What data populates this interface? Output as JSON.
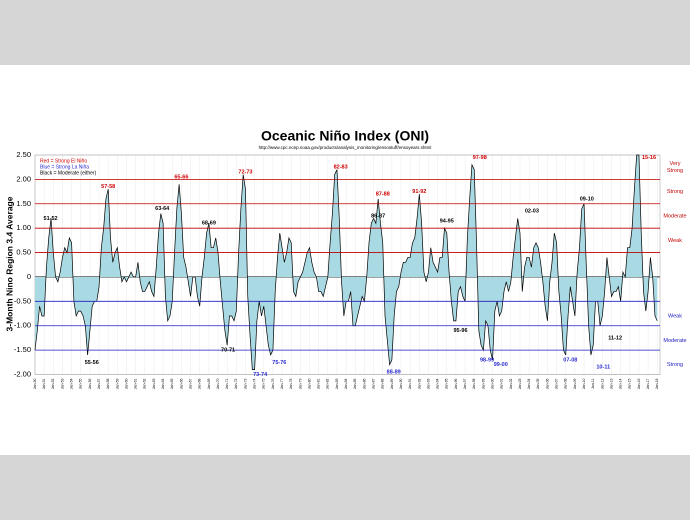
{
  "chart_data": {
    "type": "area",
    "title": "Oceanic Niño Index (ONI)",
    "subtitle": "http://www.cpc.ncep.noaa.gov/products/analysis_monitoring/ensostuff/ensoyears.shtml",
    "y_label": "3-Month Nino Region 3.4 Average",
    "legend_notes": [
      {
        "text": "Red = Strong El Niño",
        "color": "#d00000"
      },
      {
        "text": "Blue = Strong La Niña",
        "color": "#2a2ad0"
      },
      {
        "text": "Black = Moderate (either)",
        "color": "#000000"
      }
    ],
    "line_color": "#000000",
    "fill_color": "#a9d9e2",
    "ylim": [
      -2.0,
      2.5
    ],
    "yticks": [
      {
        "value": 2.5,
        "label": "2.50"
      },
      {
        "value": 2.0,
        "label": "2.00"
      },
      {
        "value": 1.5,
        "label": "1.50"
      },
      {
        "value": 1.0,
        "label": "1.00"
      },
      {
        "value": 0.5,
        "label": "0.50"
      },
      0,
      {
        "value": -0.5,
        "label": "-0.50"
      },
      {
        "value": -1.0,
        "label": "-1.00"
      },
      {
        "value": -1.5,
        "label": "-1.50"
      },
      {
        "value": -2.0,
        "label": "-2.00"
      }
    ],
    "xlim": [
      1950,
      2018.3
    ],
    "xticks": [
      {
        "value": 1950,
        "label": "Jan-50"
      },
      {
        "value": 1951,
        "label": "Jan-51"
      },
      {
        "value": 1952,
        "label": "Jan-52"
      },
      {
        "value": 1953,
        "label": "Jan-53"
      },
      {
        "value": 1954,
        "label": "Jan-54"
      },
      {
        "value": 1955,
        "label": "Jan-55"
      },
      {
        "value": 1956,
        "label": "Jan-56"
      },
      {
        "value": 1957,
        "label": "Jan-57"
      },
      {
        "value": 1958,
        "label": "Jan-58"
      },
      {
        "value": 1959,
        "label": "Jan-59"
      },
      {
        "value": 1960,
        "label": "Jan-60"
      },
      {
        "value": 1961,
        "label": "Jan-61"
      },
      {
        "value": 1962,
        "label": "Jan-62"
      },
      {
        "value": 1963,
        "label": "Jan-63"
      },
      {
        "value": 1964,
        "label": "Jan-64"
      },
      {
        "value": 1965,
        "label": "Jan-65"
      },
      {
        "value": 1966,
        "label": "Jan-66"
      },
      {
        "value": 1967,
        "label": "Jan-67"
      },
      {
        "value": 1968,
        "label": "Jan-68"
      },
      {
        "value": 1969,
        "label": "Jan-69"
      },
      {
        "value": 1970,
        "label": "Jan-70"
      },
      {
        "value": 1971,
        "label": "Jan-71"
      },
      {
        "value": 1972,
        "label": "Jan-72"
      },
      {
        "value": 1973,
        "label": "Jan-73"
      },
      {
        "value": 1974,
        "label": "Jan-74"
      },
      {
        "value": 1975,
        "label": "Jan-75"
      },
      {
        "value": 1976,
        "label": "Jan-76"
      },
      {
        "value": 1977,
        "label": "Jan-77"
      },
      {
        "value": 1978,
        "label": "Jan-78"
      },
      {
        "value": 1979,
        "label": "Jan-79"
      },
      {
        "value": 1980,
        "label": "Jan-80"
      },
      {
        "value": 1981,
        "label": "Jan-81"
      },
      {
        "value": 1982,
        "label": "Jan-82"
      },
      {
        "value": 1983,
        "label": "Jan-83"
      },
      {
        "value": 1984,
        "label": "Jan-84"
      },
      {
        "value": 1985,
        "label": "Jan-85"
      },
      {
        "value": 1986,
        "label": "Jan-86"
      },
      {
        "value": 1987,
        "label": "Jan-87"
      },
      {
        "value": 1988,
        "label": "Jan-88"
      },
      {
        "value": 1989,
        "label": "Jan-89"
      },
      {
        "value": 1990,
        "label": "Jan-90"
      },
      {
        "value": 1991,
        "label": "Jan-91"
      },
      {
        "value": 1992,
        "label": "Jan-92"
      },
      {
        "value": 1993,
        "label": "Jan-93"
      },
      {
        "value": 1994,
        "label": "Jan-94"
      },
      {
        "value": 1995,
        "label": "Jan-95"
      },
      {
        "value": 1996,
        "label": "Jan-96"
      },
      {
        "value": 1997,
        "label": "Jan-97"
      },
      {
        "value": 1998,
        "label": "Jan-98"
      },
      {
        "value": 1999,
        "label": "Jan-99"
      },
      {
        "value": 2000,
        "label": "Jan-00"
      },
      {
        "value": 2001,
        "label": "Jan-01"
      },
      {
        "value": 2002,
        "label": "Jan-02"
      },
      {
        "value": 2003,
        "label": "Jan-03"
      },
      {
        "value": 2004,
        "label": "Jan-04"
      },
      {
        "value": 2005,
        "label": "Jan-05"
      },
      {
        "value": 2006,
        "label": "Jan-06"
      },
      {
        "value": 2007,
        "label": "Jan-07"
      },
      {
        "value": 2008,
        "label": "Jan-08"
      },
      {
        "value": 2009,
        "label": "Jan-09"
      },
      {
        "value": 2010,
        "label": "Jan-10"
      },
      {
        "value": 2011,
        "label": "Jan-11"
      },
      {
        "value": 2012,
        "label": "Jan-12"
      },
      {
        "value": 2013,
        "label": "Jan-13"
      },
      {
        "value": 2014,
        "label": "Jan-14"
      },
      {
        "value": 2015,
        "label": "Jan-15"
      },
      {
        "value": 2016,
        "label": "Jan-16"
      },
      {
        "value": 2017,
        "label": "Jan-17"
      },
      {
        "value": 2018,
        "label": "Jan-18"
      }
    ],
    "x": [
      1950,
      1950.25,
      1950.5,
      1950.75,
      1951,
      1951.25,
      1951.5,
      1951.75,
      1952,
      1952.25,
      1952.5,
      1952.75,
      1953,
      1953.25,
      1953.5,
      1953.75,
      1954,
      1954.25,
      1954.5,
      1954.75,
      1955,
      1955.25,
      1955.5,
      1955.75,
      1956,
      1956.25,
      1956.5,
      1956.75,
      1957,
      1957.25,
      1957.5,
      1957.75,
      1958,
      1958.25,
      1958.5,
      1958.75,
      1959,
      1959.25,
      1959.5,
      1959.75,
      1960,
      1960.25,
      1960.5,
      1960.75,
      1961,
      1961.25,
      1961.5,
      1961.75,
      1962,
      1962.25,
      1962.5,
      1962.75,
      1963,
      1963.25,
      1963.5,
      1963.75,
      1964,
      1964.25,
      1964.5,
      1964.75,
      1965,
      1965.25,
      1965.5,
      1965.75,
      1966,
      1966.25,
      1966.5,
      1966.75,
      1967,
      1967.25,
      1967.5,
      1967.75,
      1968,
      1968.25,
      1968.5,
      1968.75,
      1969,
      1969.25,
      1969.5,
      1969.75,
      1970,
      1970.25,
      1970.5,
      1970.75,
      1971,
      1971.25,
      1971.5,
      1971.75,
      1972,
      1972.25,
      1972.5,
      1972.75,
      1973,
      1973.25,
      1973.5,
      1973.75,
      1974,
      1974.25,
      1974.5,
      1974.75,
      1975,
      1975.25,
      1975.5,
      1975.75,
      1976,
      1976.25,
      1976.5,
      1976.75,
      1977,
      1977.25,
      1977.5,
      1977.75,
      1978,
      1978.25,
      1978.5,
      1978.75,
      1979,
      1979.25,
      1979.5,
      1979.75,
      1980,
      1980.25,
      1980.5,
      1980.75,
      1981,
      1981.25,
      1981.5,
      1981.75,
      1982,
      1982.25,
      1982.5,
      1982.75,
      1983,
      1983.25,
      1983.5,
      1983.75,
      1984,
      1984.25,
      1984.5,
      1984.75,
      1985,
      1985.25,
      1985.5,
      1985.75,
      1986,
      1986.25,
      1986.5,
      1986.75,
      1987,
      1987.25,
      1987.5,
      1987.75,
      1988,
      1988.25,
      1988.5,
      1988.75,
      1989,
      1989.25,
      1989.5,
      1989.75,
      1990,
      1990.25,
      1990.5,
      1990.75,
      1991,
      1991.25,
      1991.5,
      1991.75,
      1992,
      1992.25,
      1992.5,
      1992.75,
      1993,
      1993.25,
      1993.5,
      1993.75,
      1994,
      1994.25,
      1994.5,
      1994.75,
      1995,
      1995.25,
      1995.5,
      1995.75,
      1996,
      1996.25,
      1996.5,
      1996.75,
      1997,
      1997.25,
      1997.5,
      1997.75,
      1998,
      1998.25,
      1998.5,
      1998.75,
      1999,
      1999.25,
      1999.5,
      1999.75,
      2000,
      2000.25,
      2000.5,
      2000.75,
      2001,
      2001.25,
      2001.5,
      2001.75,
      2002,
      2002.25,
      2002.5,
      2002.75,
      2003,
      2003.25,
      2003.5,
      2003.75,
      2004,
      2004.25,
      2004.5,
      2004.75,
      2005,
      2005.25,
      2005.5,
      2005.75,
      2006,
      2006.25,
      2006.5,
      2006.75,
      2007,
      2007.25,
      2007.5,
      2007.75,
      2008,
      2008.25,
      2008.5,
      2008.75,
      2009,
      2009.25,
      2009.5,
      2009.75,
      2010,
      2010.25,
      2010.5,
      2010.75,
      2011,
      2011.25,
      2011.5,
      2011.75,
      2012,
      2012.25,
      2012.5,
      2012.75,
      2013,
      2013.25,
      2013.5,
      2013.75,
      2014,
      2014.25,
      2014.5,
      2014.75,
      2015,
      2015.25,
      2015.5,
      2015.75,
      2016,
      2016.25,
      2016.5,
      2016.75,
      2017,
      2017.25,
      2017.5,
      2017.75,
      2018
    ],
    "values": [
      -1.5,
      -1.1,
      -0.6,
      -0.8,
      -0.8,
      0.2,
      0.8,
      1.2,
      0.5,
      0.0,
      -0.1,
      0.1,
      0.4,
      0.6,
      0.5,
      0.8,
      0.7,
      -0.5,
      -0.8,
      -0.7,
      -0.7,
      -0.8,
      -1.0,
      -1.6,
      -1.1,
      -0.6,
      -0.5,
      -0.5,
      -0.2,
      0.6,
      1.0,
      1.6,
      1.8,
      0.8,
      0.3,
      0.5,
      0.6,
      0.2,
      -0.1,
      0.0,
      -0.1,
      0.0,
      0.1,
      0.0,
      0.0,
      0.3,
      -0.1,
      -0.3,
      -0.3,
      -0.2,
      -0.1,
      -0.3,
      -0.4,
      0.2,
      0.9,
      1.3,
      1.1,
      -0.4,
      -0.9,
      -0.8,
      -0.5,
      0.5,
      1.4,
      1.9,
      1.3,
      0.4,
      0.2,
      -0.1,
      -0.4,
      0.0,
      0.0,
      -0.4,
      -0.6,
      0.0,
      0.4,
      0.9,
      1.1,
      0.6,
      0.6,
      0.8,
      0.5,
      -0.1,
      -0.6,
      -1.1,
      -1.4,
      -0.8,
      -0.8,
      -0.9,
      -0.7,
      0.5,
      1.4,
      2.1,
      1.8,
      -0.4,
      -1.2,
      -1.9,
      -1.9,
      -0.9,
      -0.5,
      -0.8,
      -0.6,
      -1.0,
      -1.4,
      -1.6,
      -1.5,
      -0.3,
      0.4,
      0.9,
      0.6,
      0.3,
      0.5,
      0.8,
      0.7,
      -0.3,
      -0.4,
      -0.1,
      0.0,
      0.1,
      0.3,
      0.5,
      0.6,
      0.3,
      0.1,
      0.0,
      -0.3,
      -0.3,
      -0.4,
      -0.2,
      0.0,
      0.7,
      1.3,
      2.1,
      2.2,
      1.2,
      -0.1,
      -0.8,
      -0.5,
      -0.5,
      -0.3,
      -1.0,
      -1.0,
      -0.8,
      -0.6,
      -0.4,
      -0.5,
      0.0,
      0.7,
      1.1,
      1.2,
      1.1,
      1.6,
      1.1,
      0.7,
      -0.8,
      -1.3,
      -1.8,
      -1.7,
      -0.8,
      -0.3,
      -0.2,
      0.1,
      0.3,
      0.3,
      0.4,
      0.4,
      0.7,
      0.8,
      1.2,
      1.7,
      1.1,
      0.1,
      -0.1,
      0.1,
      0.6,
      0.3,
      0.2,
      0.1,
      0.4,
      0.4,
      1.0,
      0.9,
      0.1,
      -0.5,
      -0.9,
      -0.9,
      -0.3,
      -0.2,
      -0.4,
      -0.5,
      0.8,
      1.6,
      2.3,
      2.2,
      0.7,
      -1.1,
      -1.4,
      -1.5,
      -0.9,
      -1.0,
      -1.5,
      -1.7,
      -0.7,
      -0.5,
      -0.8,
      -0.7,
      -0.3,
      -0.1,
      -0.3,
      -0.1,
      0.4,
      0.8,
      1.2,
      0.9,
      -0.3,
      0.2,
      0.4,
      0.4,
      0.2,
      0.6,
      0.7,
      0.6,
      0.3,
      -0.1,
      -0.6,
      -0.9,
      -0.1,
      0.3,
      0.9,
      0.7,
      -0.3,
      -0.8,
      -1.5,
      -1.6,
      -0.8,
      -0.2,
      -0.5,
      -0.8,
      0.1,
      0.6,
      1.4,
      1.5,
      0.2,
      -1.0,
      -1.6,
      -1.4,
      -0.5,
      -0.5,
      -1.0,
      -0.8,
      -0.3,
      0.4,
      0.0,
      -0.4,
      -0.3,
      -0.3,
      -0.2,
      -0.5,
      0.1,
      0.0,
      0.6,
      0.6,
      1.0,
      1.8,
      2.5,
      2.5,
      0.9,
      -0.3,
      -0.7,
      -0.3,
      0.4,
      0.0,
      -0.8,
      -0.9
    ],
    "thresholds": [
      {
        "value": 0.5,
        "label": "Weak",
        "color": "#c00000"
      },
      {
        "value": 1.0,
        "label": "Moderate",
        "color": "#c00000"
      },
      {
        "value": 1.5,
        "label": "Strong",
        "color": "#c00000"
      },
      {
        "value": 2.0,
        "label": "Very Strong",
        "color": "#c00000"
      },
      {
        "value": -0.5,
        "label": "Weak",
        "color": "#2020c0"
      },
      {
        "value": -1.0,
        "label": "Moderate",
        "color": "#2020c0"
      },
      {
        "value": -1.5,
        "label": "Strong",
        "color": "#2020c0"
      }
    ],
    "annotations": [
      {
        "text": "51-52",
        "color": "#000000",
        "x": 1951.7,
        "y": 1.2
      },
      {
        "text": "55-56",
        "color": "#000000",
        "x": 1956.2,
        "y": -1.75
      },
      {
        "text": "57-58",
        "color": "#d00000",
        "x": 1958.0,
        "y": 1.85
      },
      {
        "text": "63-64",
        "color": "#000000",
        "x": 1963.9,
        "y": 1.4
      },
      {
        "text": "65-66",
        "color": "#d00000",
        "x": 1966.0,
        "y": 2.05
      },
      {
        "text": "68-69",
        "color": "#000000",
        "x": 1969.0,
        "y": 1.1
      },
      {
        "text": "70-71",
        "color": "#000000",
        "x": 1971.1,
        "y": -1.5
      },
      {
        "text": "72-73",
        "color": "#d00000",
        "x": 1973.0,
        "y": 2.15
      },
      {
        "text": "73-74",
        "color": "#2a2ad0",
        "x": 1974.6,
        "y": -2.0
      },
      {
        "text": "75-76",
        "color": "#2a2ad0",
        "x": 1976.7,
        "y": -1.75
      },
      {
        "text": "82-83",
        "color": "#d00000",
        "x": 1983.4,
        "y": 2.25
      },
      {
        "text": "86-87",
        "color": "#000000",
        "x": 1987.5,
        "y": 1.25
      },
      {
        "text": "87-88",
        "color": "#d00000",
        "x": 1988.0,
        "y": 1.7
      },
      {
        "text": "88-89",
        "color": "#2a2ad0",
        "x": 1989.2,
        "y": -1.95
      },
      {
        "text": "91-92",
        "color": "#d00000",
        "x": 1992.0,
        "y": 1.75
      },
      {
        "text": "94-95",
        "color": "#000000",
        "x": 1995.0,
        "y": 1.15
      },
      {
        "text": "95-96",
        "color": "#000000",
        "x": 1996.5,
        "y": -1.1
      },
      {
        "text": "97-98",
        "color": "#d00000",
        "x": 1998.6,
        "y": 2.45
      },
      {
        "text": "98-99",
        "color": "#2a2ad0",
        "x": 1999.4,
        "y": -1.7
      },
      {
        "text": "99-00",
        "color": "#2a2ad0",
        "x": 2000.9,
        "y": -1.8
      },
      {
        "text": "02-03",
        "color": "#000000",
        "x": 2004.3,
        "y": 1.35
      },
      {
        "text": "07-08",
        "color": "#2a2ad0",
        "x": 2008.5,
        "y": -1.7
      },
      {
        "text": "09-10",
        "color": "#000000",
        "x": 2010.3,
        "y": 1.6
      },
      {
        "text": "10-11",
        "color": "#2a2ad0",
        "x": 2012.1,
        "y": -1.85
      },
      {
        "text": "11-12",
        "color": "#000000",
        "x": 2013.4,
        "y": -1.25
      },
      {
        "text": "15-16",
        "color": "#d00000",
        "x": 2017.1,
        "y": 2.45
      }
    ]
  }
}
